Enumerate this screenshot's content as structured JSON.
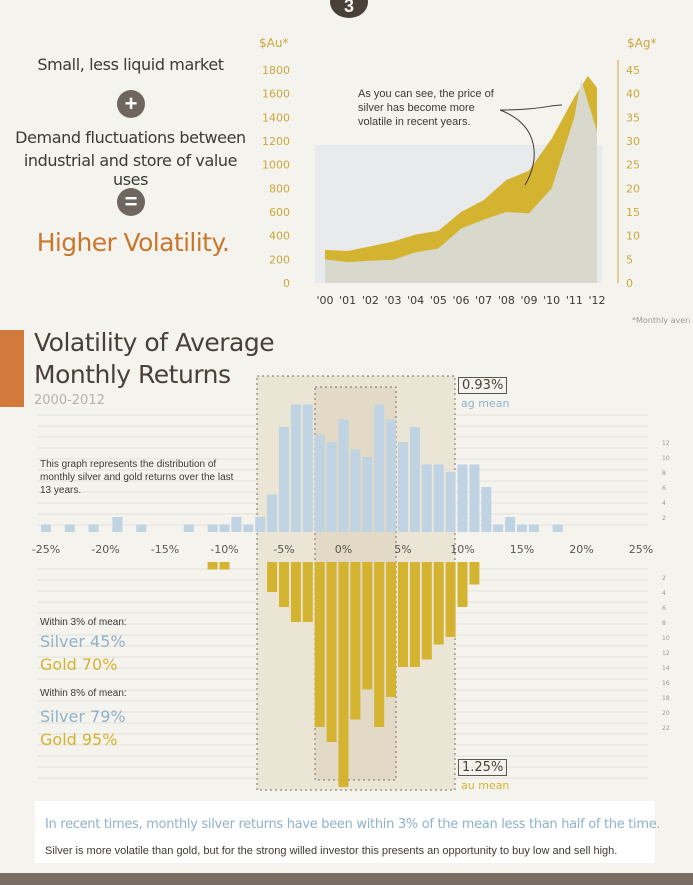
{
  "step_number": "3",
  "intro": {
    "line1": "Small, less liquid market",
    "plus": "+",
    "line2a": "Demand fluctuations between",
    "line2b": "industrial and store of value uses",
    "equals": "=",
    "result": "Higher Volatility."
  },
  "colors": {
    "gold": "#d4b331",
    "silver": "#bfd3e2",
    "accent": "#c8782e",
    "silver_text": "#8fb2c9"
  },
  "chart_data": [
    {
      "type": "area",
      "series": [
        {
          "name": "$Au*",
          "axis": "left",
          "x": [
            2000,
            2001,
            2002,
            2003,
            2004,
            2005,
            2006,
            2007,
            2008,
            2009,
            2010,
            2011,
            2011.6,
            2012
          ],
          "values": [
            280,
            270,
            310,
            350,
            410,
            440,
            600,
            700,
            870,
            950,
            1220,
            1570,
            1750,
            1650
          ]
        },
        {
          "name": "$Ag*",
          "axis": "right",
          "x": [
            2000,
            2001,
            2002,
            2003,
            2004,
            2005,
            2006,
            2007,
            2008,
            2009,
            2010,
            2011,
            2011.3,
            2012
          ],
          "values": [
            5,
            4.4,
            4.7,
            4.9,
            6.5,
            7.3,
            11.5,
            13.4,
            15,
            14.7,
            20,
            35,
            43,
            32
          ]
        }
      ],
      "x_ticks": [
        "'00",
        "'01",
        "'02",
        "'03",
        "'04",
        "'05",
        "'06",
        "'07",
        "'08",
        "'09",
        "'10",
        "'11",
        "'12"
      ],
      "y_left_label": "$Au*",
      "y_left_ticks": [
        "1800",
        "1600",
        "1400",
        "1200",
        "1000",
        "800",
        "600",
        "400",
        "200",
        "0"
      ],
      "y_left_lim": [
        0,
        1800
      ],
      "y_right_label": "$Ag*",
      "y_right_ticks": [
        "45",
        "40",
        "35",
        "30",
        "25",
        "20",
        "15",
        "10",
        "5",
        "0"
      ],
      "y_right_lim": [
        0,
        45
      ],
      "annotation": "As you can see, the price of silver has become more volatile in recent years.",
      "footnote": "*Monthly average price"
    },
    {
      "type": "bar",
      "title": "Volatility of Average Monthly Returns",
      "subtitle": "2000-2012",
      "x_ticks": [
        "-25%",
        "-20%",
        "-15%",
        "-10%",
        "-5%",
        "0%",
        "5%",
        "10%",
        "15%",
        "20%",
        "25%"
      ],
      "x_lim": [
        -26,
        26
      ],
      "bin_centers": [
        -25,
        -23,
        -21,
        -19,
        -17,
        -15,
        -13,
        -11,
        -10,
        -9,
        -8,
        -7,
        -6,
        -5,
        -4,
        -3,
        -2,
        -1,
        0,
        1,
        2,
        3,
        4,
        5,
        6,
        7,
        8,
        9,
        10,
        11,
        12,
        13,
        14,
        15,
        16,
        17,
        18,
        19,
        20,
        21,
        22,
        23,
        24,
        25
      ],
      "series": [
        {
          "name": "Silver",
          "values": [
            1,
            1,
            1,
            2,
            1,
            0,
            1,
            1,
            1,
            2,
            1,
            2,
            5,
            14,
            17,
            17,
            13,
            12,
            15,
            11,
            10,
            17,
            15,
            12,
            14,
            9,
            9,
            8,
            9,
            9,
            6,
            1,
            2,
            1,
            1,
            0,
            1,
            0,
            0,
            0,
            0,
            0,
            0,
            0
          ]
        },
        {
          "name": "Gold",
          "values": [
            0,
            0,
            0,
            0,
            0,
            0,
            0,
            1,
            1,
            0,
            0,
            0,
            4,
            6,
            8,
            8,
            22,
            24,
            30,
            21,
            17,
            22,
            18,
            14,
            14,
            13,
            11,
            10,
            6,
            3,
            0,
            0,
            0,
            0,
            0,
            0,
            0,
            0,
            0,
            0,
            0,
            0,
            0,
            0
          ]
        }
      ],
      "y_ticks_top": [
        "12",
        "10",
        "8",
        "6",
        "4",
        "2"
      ],
      "y_ticks_bottom": [
        "2",
        "4",
        "6",
        "8",
        "10",
        "12",
        "14",
        "16",
        "18",
        "20",
        "22"
      ],
      "silver_mean": {
        "value": "0.93%",
        "label": "ag mean"
      },
      "gold_mean": {
        "value": "1.25%",
        "label": "au mean"
      },
      "description": "This graph represents the distribution of monthly silver and gold returns over the last 13 years.",
      "stats": {
        "within3_label": "Within 3% of mean:",
        "within3_silver": "Silver 45%",
        "within3_gold": "Gold 70%",
        "within8_label": "Within 8% of mean:",
        "within8_silver": "Silver 79%",
        "within8_gold": "Gold 95%"
      }
    }
  ],
  "footer": {
    "line1": "In recent times, monthly silver returns have been within 3% of the mean less than half of the time.",
    "line2": "Silver is more volatile than gold, but for the strong willed investor this presents an opportunity to buy low and sell high."
  }
}
